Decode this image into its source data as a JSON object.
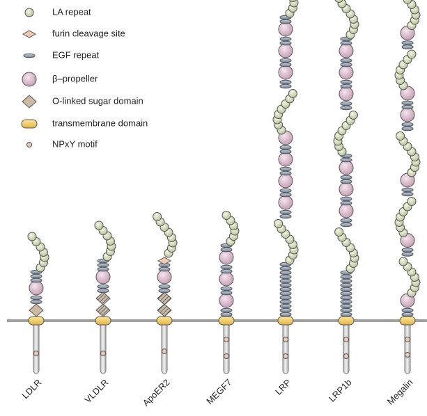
{
  "legend": {
    "items": [
      "LA repeat",
      "furin cleavage site",
      "EGF repeat",
      "β–propeller",
      "O-linked sugar domain",
      "transmembrane domain",
      "NPxY motif"
    ]
  },
  "receptors": [
    "LDLR",
    "VLDLR",
    "ApoER2",
    "MEGF7",
    "LRP",
    "LRP1b",
    "Megalin"
  ]
}
